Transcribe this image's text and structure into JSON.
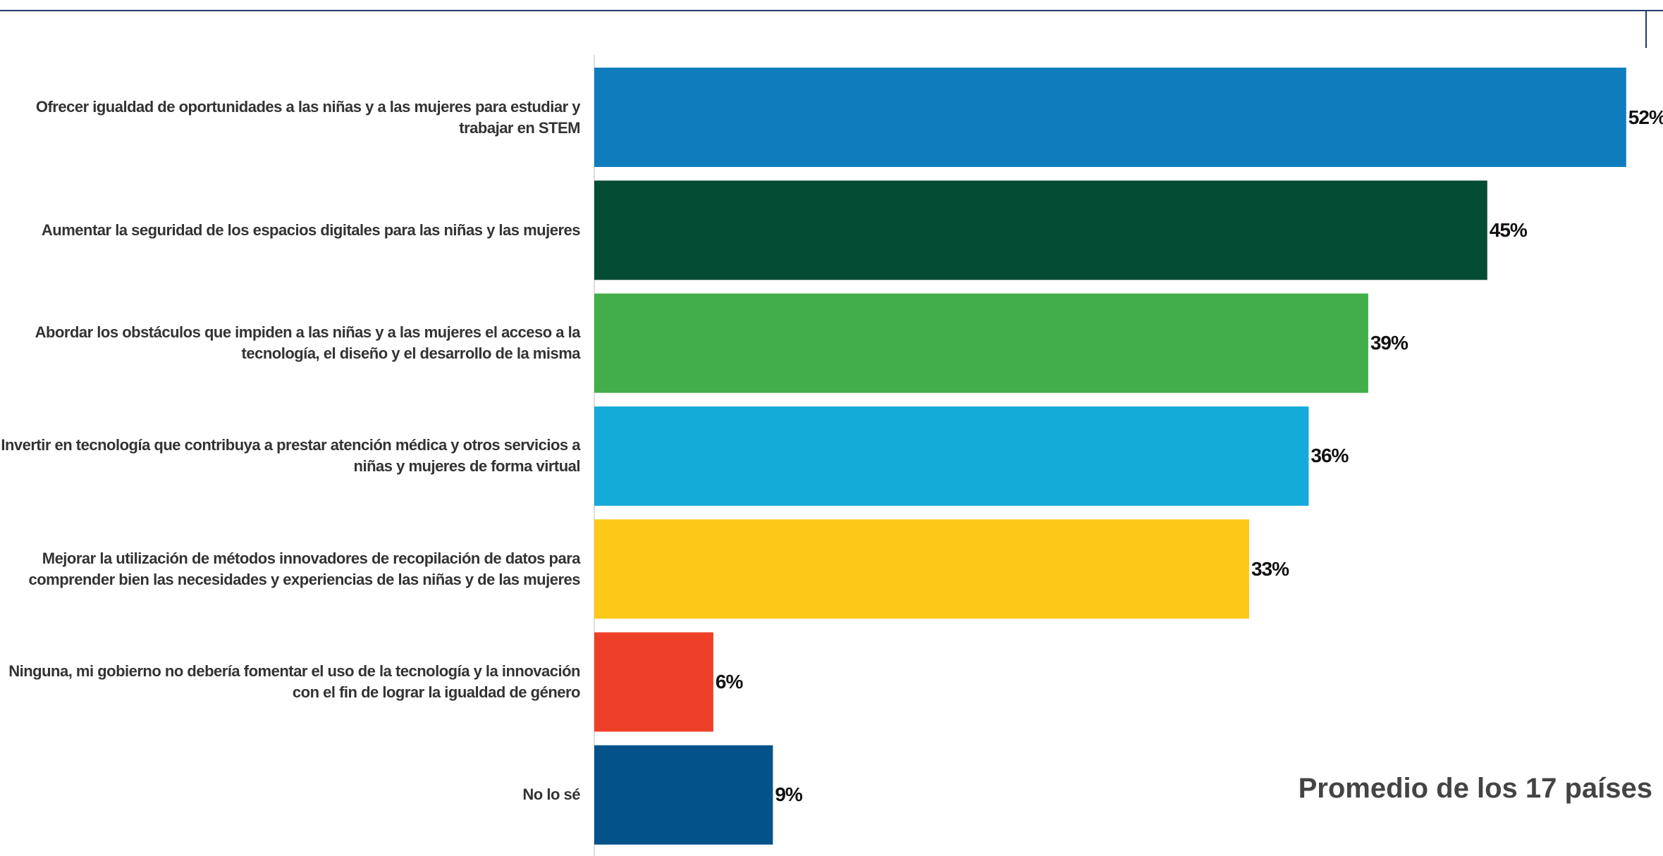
{
  "chart_data": {
    "type": "bar",
    "orientation": "horizontal",
    "categories": [
      "Ofrecer igualdad de oportunidades a las niñas y a las mujeres para estudiar y trabajar en STEM",
      "Aumentar la seguridad de los espacios digitales para las niñas y las mujeres",
      "Abordar los obstáculos que impiden a las niñas y a las mujeres el acceso a la tecnología, el diseño y el desarrollo de la misma",
      "Invertir en tecnología que contribuya a prestar atención médica y otros servicios a niñas y mujeres de forma virtual",
      "Mejorar la utilización de métodos innovadores de recopilación de datos para comprender bien las necesidades y experiencias de las niñas y de las mujeres",
      "Ninguna, mi gobierno no debería fomentar el uso de la tecnología y la innovación con el fin de lograr la igualdad de género",
      "No lo sé"
    ],
    "values": [
      52,
      45,
      39,
      36,
      33,
      6,
      9
    ],
    "value_labels": [
      "52%",
      "45%",
      "39%",
      "36%",
      "33%",
      "6%",
      "9%"
    ],
    "colors": [
      "#0f7dbd",
      "#054c35",
      "#42ae4a",
      "#15abd8",
      "#fdc918",
      "#ee4029",
      "#04528a"
    ],
    "annotation": "Promedio de los 17 países"
  }
}
